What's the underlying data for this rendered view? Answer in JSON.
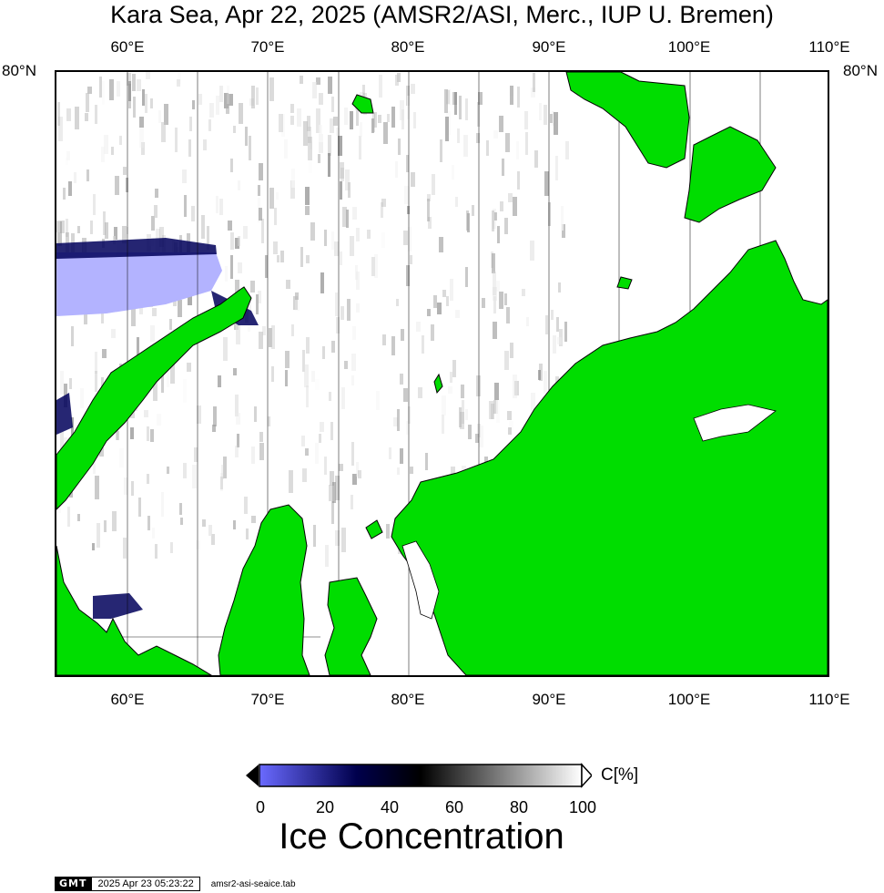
{
  "title": "Kara Sea, Apr 22, 2025 (AMSR2/ASI, Merc., IUP U. Bremen)",
  "map": {
    "lon_labels_top": [
      "60°E",
      "70°E",
      "80°E",
      "90°E",
      "100°E",
      "110°E"
    ],
    "lon_labels_bottom": [
      "60°E",
      "70°E",
      "80°E",
      "90°E",
      "100°E",
      "110°E"
    ],
    "lat_label_left": "80°N",
    "lat_label_right": "80°N",
    "land_color": "#00dd00",
    "open_water_color": "#b3b3ff",
    "ice_color": "#ffffff"
  },
  "colorbar": {
    "unit": "C[%]",
    "ticks": [
      "0",
      "20",
      "40",
      "60",
      "80",
      "100"
    ],
    "title": "Ice Concentration",
    "colors": [
      "#6a6aff",
      "#00004d",
      "#000000",
      "#ffffff"
    ]
  },
  "footer": {
    "logo": "GMT",
    "timestamp": "2025 Apr 23 05:23:22",
    "source": "amsr2-asi-seaice.tab"
  }
}
